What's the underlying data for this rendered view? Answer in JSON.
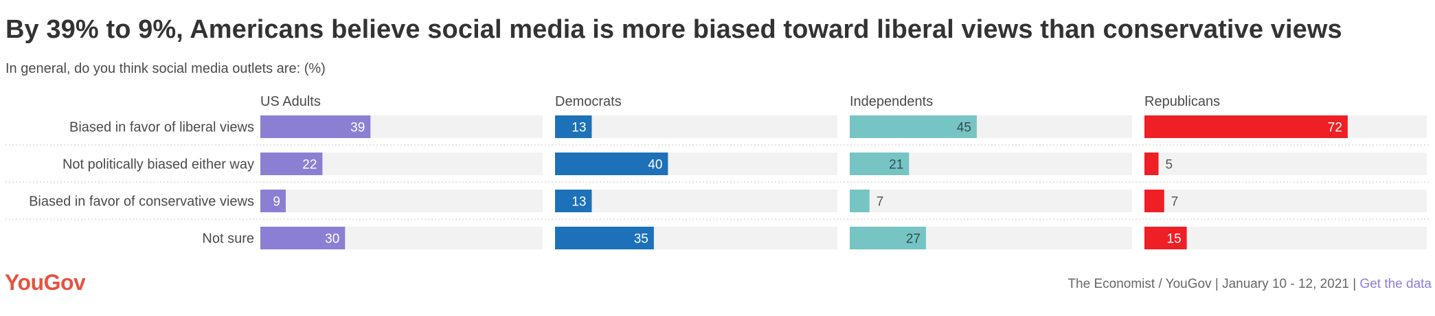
{
  "title": "By 39% to 9%, Americans believe social media is more biased toward liberal views than conservative views",
  "subtitle": "In general, do you think social media outlets are: (%)",
  "brand": "YouGov",
  "source": {
    "text": "The Economist / YouGov | January 10 - 12, 2021 |",
    "link": "Get the data"
  },
  "chart_data": {
    "type": "bar",
    "orientation": "horizontal",
    "xlim": [
      0,
      100
    ],
    "categories": [
      "Biased in favor of liberal views",
      "Not politically biased either way",
      "Biased in favor of conservative views",
      "Not sure"
    ],
    "series": [
      {
        "name": "US Adults",
        "color": "#8b7fd4",
        "values": [
          39,
          22,
          9,
          30
        ]
      },
      {
        "name": "Democrats",
        "color": "#1c71b8",
        "values": [
          13,
          40,
          13,
          35
        ]
      },
      {
        "name": "Independents",
        "color": "#76c4c3",
        "values": [
          45,
          21,
          7,
          27
        ]
      },
      {
        "name": "Republicans",
        "color": "#ee2026",
        "values": [
          72,
          5,
          7,
          15
        ]
      }
    ]
  }
}
